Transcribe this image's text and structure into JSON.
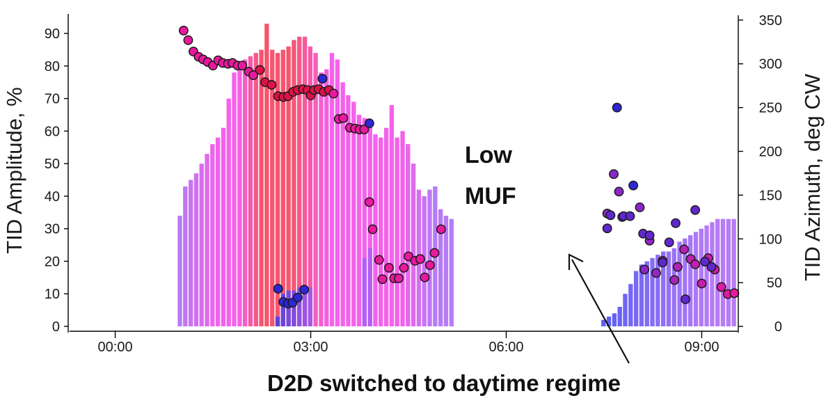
{
  "chart_data": {
    "type": "bar",
    "title": "",
    "xlabel": "",
    "ylabel": "TID Amplitude, %",
    "y2label": "TID Azimuth, deg CW",
    "xlim": [
      -0.7,
      9.55
    ],
    "ylim": [
      -1.5,
      96
    ],
    "y2lim": [
      -5.5,
      357
    ],
    "x_ticks": [
      {
        "value": 0,
        "label": "00:00"
      },
      {
        "value": 3,
        "label": "03:00"
      },
      {
        "value": 6,
        "label": "06:00"
      },
      {
        "value": 9,
        "label": "09:00"
      }
    ],
    "y_ticks": [
      0,
      10,
      20,
      30,
      40,
      50,
      60,
      70,
      80,
      90
    ],
    "y2_ticks": [
      0,
      50,
      100,
      150,
      200,
      250,
      300,
      350
    ],
    "bar_width_h": 0.083,
    "series": [
      {
        "kind": "bar",
        "axis": "left",
        "values": [
          [
            1.0,
            34
          ],
          [
            1.083,
            43
          ],
          [
            1.167,
            45
          ],
          [
            1.25,
            47
          ],
          [
            1.333,
            50
          ],
          [
            1.417,
            53
          ],
          [
            1.5,
            56
          ],
          [
            1.583,
            58
          ],
          [
            1.667,
            61
          ],
          [
            1.75,
            70
          ],
          [
            1.833,
            78
          ],
          [
            1.917,
            80
          ],
          [
            2.0,
            82
          ],
          [
            2.083,
            83
          ],
          [
            2.167,
            84
          ],
          [
            2.25,
            85
          ],
          [
            2.333,
            93
          ],
          [
            2.417,
            85
          ],
          [
            2.5,
            84
          ],
          [
            2.583,
            85
          ],
          [
            2.667,
            86
          ],
          [
            2.75,
            88
          ],
          [
            2.833,
            89
          ],
          [
            2.917,
            89
          ],
          [
            3.0,
            86
          ],
          [
            3.083,
            84
          ],
          [
            3.167,
            78
          ],
          [
            3.25,
            79
          ],
          [
            3.333,
            84
          ],
          [
            3.417,
            82
          ],
          [
            3.5,
            75
          ],
          [
            3.583,
            71
          ],
          [
            3.667,
            69
          ],
          [
            3.75,
            65
          ],
          [
            3.833,
            64
          ],
          [
            3.917,
            62
          ],
          [
            4.0,
            59
          ],
          [
            4.083,
            58
          ],
          [
            4.167,
            61
          ],
          [
            4.25,
            68
          ],
          [
            4.333,
            58
          ],
          [
            4.417,
            60
          ],
          [
            4.5,
            56
          ],
          [
            4.583,
            50
          ],
          [
            4.667,
            42
          ],
          [
            4.75,
            40
          ],
          [
            4.833,
            42
          ],
          [
            4.917,
            43
          ],
          [
            5.0,
            36
          ],
          [
            5.083,
            34
          ],
          [
            5.167,
            33
          ]
        ]
      },
      {
        "kind": "bar",
        "axis": "left",
        "values": [
          [
            2.5,
            3
          ],
          [
            2.583,
            10
          ],
          [
            2.667,
            11
          ],
          [
            2.75,
            11
          ],
          [
            2.833,
            12
          ],
          [
            2.917,
            12
          ],
          [
            3.0,
            12
          ]
        ]
      },
      {
        "kind": "bar",
        "axis": "left",
        "values": [
          [
            3.833,
            21
          ],
          [
            3.917,
            24
          ]
        ]
      },
      {
        "kind": "bar",
        "axis": "left",
        "values": [
          [
            7.5,
            2
          ],
          [
            7.583,
            3
          ],
          [
            7.667,
            4
          ],
          [
            7.75,
            6
          ],
          [
            7.833,
            10
          ],
          [
            7.917,
            13
          ],
          [
            8.0,
            17
          ],
          [
            8.083,
            19
          ],
          [
            8.167,
            20
          ],
          [
            8.25,
            21
          ],
          [
            8.333,
            22
          ],
          [
            8.417,
            23
          ],
          [
            8.5,
            23
          ],
          [
            8.583,
            24
          ],
          [
            8.667,
            26
          ],
          [
            8.75,
            27
          ],
          [
            8.833,
            28
          ],
          [
            8.917,
            29
          ],
          [
            9.0,
            30
          ],
          [
            9.083,
            31
          ],
          [
            9.167,
            32
          ],
          [
            9.25,
            33
          ],
          [
            9.333,
            33
          ],
          [
            9.417,
            33
          ],
          [
            9.5,
            33
          ]
        ]
      },
      {
        "kind": "scatter",
        "axis": "right",
        "values": [
          [
            1.05,
            338
          ],
          [
            1.12,
            327
          ],
          [
            1.2,
            314
          ],
          [
            1.28,
            308
          ],
          [
            1.35,
            305
          ],
          [
            1.42,
            302
          ],
          [
            1.5,
            298
          ],
          [
            1.58,
            304
          ],
          [
            1.65,
            301
          ],
          [
            1.73,
            300
          ],
          [
            1.8,
            301
          ],
          [
            1.88,
            298
          ],
          [
            1.95,
            298
          ],
          [
            2.05,
            291
          ],
          [
            2.12,
            287
          ],
          [
            2.22,
            293
          ],
          [
            2.3,
            279
          ],
          [
            2.4,
            276
          ],
          [
            2.5,
            263
          ],
          [
            2.58,
            262
          ],
          [
            2.65,
            263
          ],
          [
            2.73,
            268
          ],
          [
            2.8,
            270
          ],
          [
            2.88,
            271
          ],
          [
            2.95,
            270
          ],
          [
            3.0,
            264
          ],
          [
            3.05,
            270
          ],
          [
            3.12,
            271
          ],
          [
            3.2,
            268
          ],
          [
            3.28,
            270
          ],
          [
            3.35,
            266
          ],
          [
            3.43,
            237
          ],
          [
            3.5,
            238
          ],
          [
            3.6,
            227
          ],
          [
            3.68,
            226
          ],
          [
            3.75,
            225
          ],
          [
            3.82,
            225
          ],
          [
            3.9,
            142
          ],
          [
            3.95,
            111
          ],
          [
            4.05,
            76
          ],
          [
            4.1,
            54
          ],
          [
            4.2,
            67
          ],
          [
            4.28,
            55
          ],
          [
            4.35,
            55
          ],
          [
            4.43,
            67
          ],
          [
            4.5,
            80
          ],
          [
            4.6,
            75
          ],
          [
            4.68,
            77
          ],
          [
            4.75,
            56
          ],
          [
            4.83,
            70
          ],
          [
            4.9,
            84
          ],
          [
            5.0,
            111
          ],
          [
            7.55,
            129
          ],
          [
            7.65,
            174
          ],
          [
            7.73,
            154
          ],
          [
            7.78,
            125
          ],
          [
            8.05,
            136
          ],
          [
            8.12,
            65
          ],
          [
            8.2,
            98
          ],
          [
            8.3,
            61
          ],
          [
            8.4,
            75
          ],
          [
            8.58,
            53
          ],
          [
            8.63,
            68
          ],
          [
            8.73,
            88
          ],
          [
            8.83,
            77
          ],
          [
            8.9,
            71
          ],
          [
            9.0,
            49
          ],
          [
            9.1,
            78
          ],
          [
            9.2,
            65
          ],
          [
            9.3,
            45
          ],
          [
            9.4,
            37
          ],
          [
            9.5,
            38
          ]
        ]
      },
      {
        "kind": "scatter",
        "axis": "right",
        "values": [
          [
            2.5,
            43
          ],
          [
            2.58,
            28
          ],
          [
            2.65,
            26
          ],
          [
            2.72,
            27
          ],
          [
            2.8,
            33
          ],
          [
            2.9,
            42
          ],
          [
            3.18,
            283
          ],
          [
            3.9,
            232
          ],
          [
            7.55,
            112
          ],
          [
            7.6,
            127
          ],
          [
            7.7,
            250
          ],
          [
            7.8,
            126
          ],
          [
            7.9,
            126
          ],
          [
            7.95,
            161
          ],
          [
            8.1,
            106
          ],
          [
            8.2,
            104
          ],
          [
            8.4,
            73
          ],
          [
            8.5,
            96
          ],
          [
            8.6,
            118
          ],
          [
            8.75,
            31
          ],
          [
            8.9,
            133
          ],
          [
            9.05,
            74
          ],
          [
            9.15,
            68
          ]
        ]
      }
    ],
    "colors": {
      "bar_magenta": "#f23fe6",
      "bar_red": "#f4304f",
      "bar_violet": "#a75ef4",
      "bar_blue": "#3a3cf2",
      "dot_magenta": "#e8199d",
      "dot_red": "#dd1148",
      "dot_blue": "#2d27d6",
      "dot_violet": "#8a28c6",
      "axis": "#000000"
    },
    "annotations": [
      {
        "text_lines": [
          "Low",
          "MUF"
        ]
      },
      {
        "text": "D2D switched to daytime regime"
      }
    ]
  }
}
